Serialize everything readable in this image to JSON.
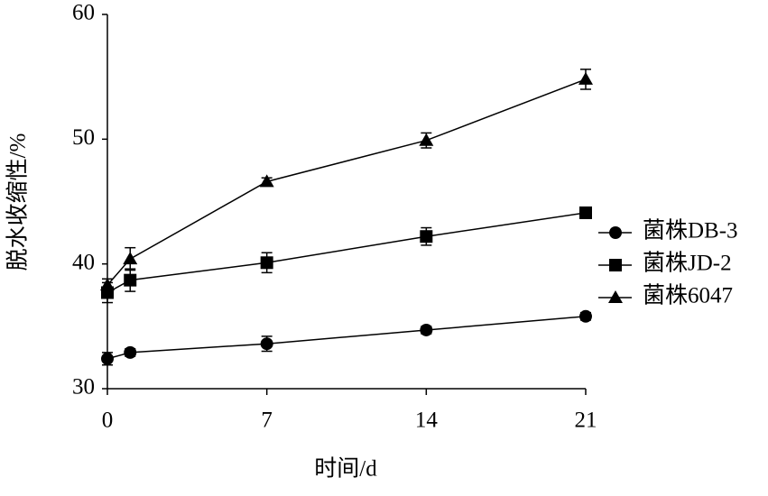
{
  "chart_data": {
    "type": "line",
    "x_label": "时间/d",
    "y_label": "脱水收缩性/%",
    "x": [
      0,
      1,
      7,
      14,
      21
    ],
    "series": [
      {
        "name": "菌株DB-3",
        "color": "#000000",
        "marker": "circle",
        "values": [
          32.4,
          32.9,
          33.6,
          34.7,
          35.8
        ],
        "errors": [
          0.5,
          0.3,
          0.6,
          0.3,
          0.3
        ]
      },
      {
        "name": "菌株JD-2",
        "color": "#000000",
        "marker": "square",
        "values": [
          37.7,
          38.7,
          40.1,
          42.2,
          44.1
        ],
        "errors": [
          0.8,
          0.9,
          0.8,
          0.7,
          0.3
        ]
      },
      {
        "name": "菌株6047",
        "color": "#000000",
        "marker": "triangle",
        "values": [
          38.3,
          40.4,
          46.6,
          49.9,
          54.8
        ],
        "errors": [
          0.5,
          0.9,
          0.3,
          0.6,
          0.8
        ]
      }
    ],
    "xlim": [
      0,
      21
    ],
    "xticks": [
      0,
      7,
      14,
      21
    ],
    "ylim": [
      30,
      60
    ],
    "yticks": [
      30,
      40,
      50,
      60
    ],
    "grid": false,
    "legend": "right"
  }
}
